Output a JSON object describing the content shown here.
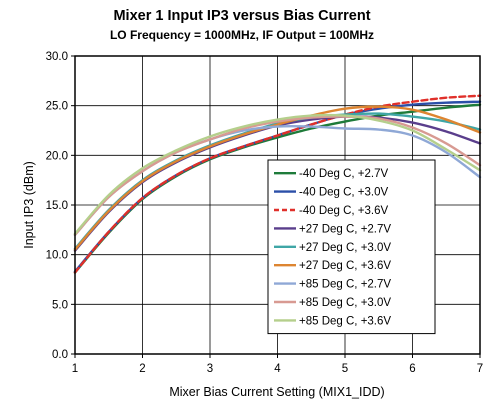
{
  "chart_data": {
    "type": "line",
    "title": "Mixer 1 Input IP3 versus Bias Current",
    "subtitle": "LO Frequency = 1000MHz, IF Output = 100MHz",
    "xlabel": "Mixer Bias Current Setting (MIX1_IDD)",
    "ylabel": "Input IP3 (dBm)",
    "xlim": [
      1,
      7
    ],
    "ylim": [
      0,
      30
    ],
    "x_ticks": [
      "1",
      "2",
      "3",
      "4",
      "5",
      "6",
      "7"
    ],
    "y_ticks": [
      "0.0",
      "5.0",
      "10.0",
      "15.0",
      "20.0",
      "25.0",
      "30.0"
    ],
    "grid": true,
    "legend_position": "lower-right",
    "x": [
      1,
      1.5,
      2,
      2.5,
      3,
      3.5,
      4,
      4.5,
      5,
      5.5,
      6,
      6.5,
      7
    ],
    "series": [
      {
        "name": "-40 Deg C, +2.7V",
        "color": "#1e7b3a",
        "dashed": false,
        "values": [
          8.2,
          12.2,
          15.6,
          17.9,
          19.6,
          20.8,
          21.8,
          22.7,
          23.4,
          24.0,
          24.4,
          24.8,
          25.1
        ]
      },
      {
        "name": "-40 Deg C, +3.0V",
        "color": "#2b4fa8",
        "dashed": false,
        "values": [
          8.3,
          12.3,
          15.7,
          18.0,
          19.7,
          20.9,
          22.0,
          23.1,
          24.1,
          24.7,
          25.1,
          25.3,
          25.4
        ]
      },
      {
        "name": "-40 Deg C, +3.6V",
        "color": "#e0302a",
        "dashed": true,
        "values": [
          8.2,
          12.3,
          15.7,
          18.0,
          19.7,
          20.9,
          22.0,
          23.1,
          24.1,
          24.9,
          25.4,
          25.8,
          26.0
        ]
      },
      {
        "name": "+27 Deg C, +2.7V",
        "color": "#5a3e8c",
        "dashed": false,
        "values": [
          10.4,
          14.3,
          17.3,
          19.3,
          20.8,
          22.0,
          23.0,
          23.6,
          23.9,
          23.8,
          23.3,
          22.4,
          21.2
        ]
      },
      {
        "name": "+27 Deg C, +3.0V",
        "color": "#3fa6a6",
        "dashed": false,
        "values": [
          10.6,
          14.5,
          17.5,
          19.5,
          21.0,
          22.2,
          23.2,
          23.8,
          24.1,
          24.2,
          23.9,
          23.4,
          22.6
        ]
      },
      {
        "name": "+27 Deg C, +3.6V",
        "color": "#dd8531",
        "dashed": false,
        "values": [
          10.5,
          14.4,
          17.4,
          19.4,
          20.9,
          22.1,
          23.1,
          24.0,
          24.7,
          24.9,
          24.6,
          23.6,
          22.3
        ]
      },
      {
        "name": "+85 Deg C, +2.7V",
        "color": "#8fa8d6",
        "dashed": false,
        "values": [
          12.0,
          15.8,
          18.4,
          20.3,
          21.6,
          22.5,
          22.9,
          22.9,
          22.7,
          22.6,
          22.0,
          20.3,
          17.8
        ]
      },
      {
        "name": "+85 Deg C, +3.0V",
        "color": "#d89a92",
        "dashed": false,
        "values": [
          12.0,
          15.8,
          18.4,
          20.3,
          21.6,
          22.7,
          23.4,
          23.8,
          23.9,
          23.7,
          22.8,
          21.2,
          19.0
        ]
      },
      {
        "name": "+85 Deg C, +3.6V",
        "color": "#b5cf8c",
        "dashed": false,
        "values": [
          12.1,
          16.0,
          18.7,
          20.5,
          21.9,
          22.9,
          23.6,
          24.0,
          24.0,
          23.5,
          22.5,
          20.6,
          18.5
        ]
      }
    ]
  }
}
